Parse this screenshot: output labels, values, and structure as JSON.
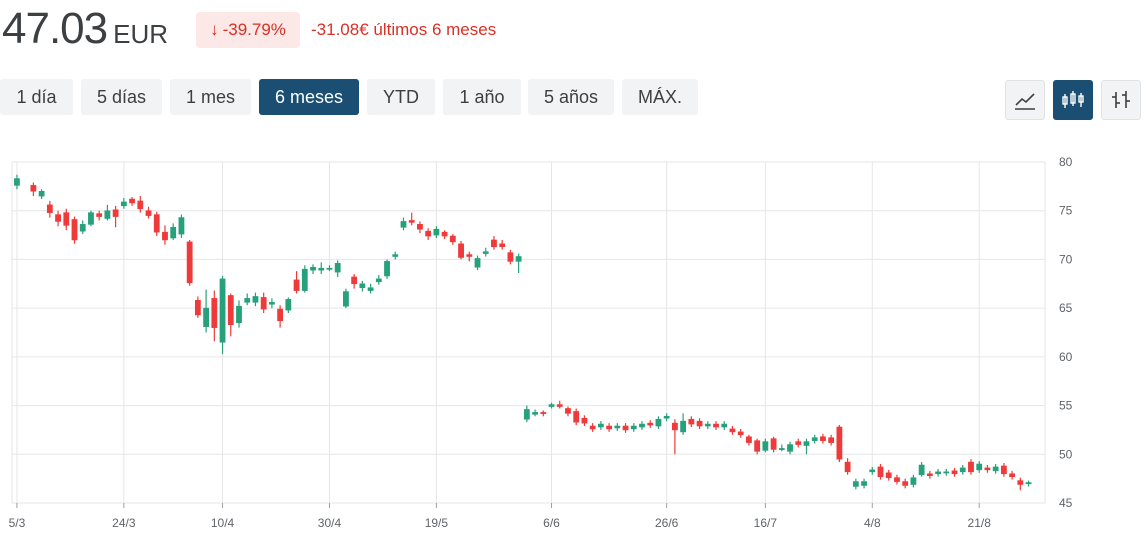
{
  "header": {
    "price": "47.03",
    "currency": "EUR",
    "change_pct": "-39.79%",
    "change_abs": "-31.08€ últimos 6 meses",
    "down_arrow": "↓"
  },
  "ranges": [
    {
      "label": "1 día",
      "active": false
    },
    {
      "label": "5 días",
      "active": false
    },
    {
      "label": "1 mes",
      "active": false
    },
    {
      "label": "6 meses",
      "active": true
    },
    {
      "label": "YTD",
      "active": false
    },
    {
      "label": "1 año",
      "active": false
    },
    {
      "label": "5 años",
      "active": false
    },
    {
      "label": "MÁX.",
      "active": false
    }
  ],
  "tools": [
    {
      "name": "line-chart-icon",
      "active": false
    },
    {
      "name": "candlestick-chart-icon",
      "active": true
    },
    {
      "name": "ohlc-chart-icon",
      "active": false
    }
  ],
  "colors": {
    "up": "#26a17b",
    "down": "#ee3a3a",
    "grid": "#e6e6e6",
    "active": "#1a4e72"
  },
  "chart_data": {
    "type": "candlestick",
    "ylim": [
      45,
      80
    ],
    "y_ticks": [
      "80",
      "75",
      "70",
      "65",
      "60",
      "55",
      "50",
      "45"
    ],
    "x_ticks": [
      "5/3",
      "24/3",
      "10/4",
      "30/4",
      "19/5",
      "6/6",
      "26/6",
      "16/7",
      "4/8",
      "21/8"
    ],
    "candles": [
      [
        2.0,
        "5/3",
        77.6,
        78.3,
        78.7,
        77.2
      ],
      [
        4.0,
        "",
        77.6,
        77.0,
        77.9,
        76.5
      ],
      [
        5.0,
        "",
        76.5,
        77.0,
        77.2,
        76.2
      ],
      [
        6.0,
        "",
        75.6,
        74.8,
        76.0,
        74.3
      ],
      [
        7.0,
        "",
        74.6,
        73.9,
        75.0,
        73.4
      ],
      [
        8.0,
        "",
        74.8,
        73.5,
        75.2,
        73.0
      ],
      [
        9.0,
        "",
        74.1,
        72.0,
        74.4,
        71.6
      ],
      [
        10.0,
        "",
        72.9,
        73.6,
        74.0,
        72.6
      ],
      [
        11.0,
        "",
        73.6,
        74.8,
        75.0,
        73.4
      ],
      [
        12.0,
        "",
        74.7,
        74.4,
        75.0,
        74.0
      ],
      [
        13.0,
        "",
        74.2,
        75.0,
        75.6,
        74.0
      ],
      [
        14.0,
        "",
        75.1,
        74.4,
        75.5,
        73.3
      ],
      [
        15.0,
        "24/3",
        75.5,
        75.9,
        76.3,
        75.2
      ],
      [
        16.0,
        "",
        76.2,
        75.8,
        76.4,
        75.5
      ],
      [
        17.0,
        "",
        76.0,
        75.2,
        76.5,
        74.8
      ],
      [
        18.0,
        "",
        75.0,
        74.5,
        75.4,
        74.2
      ],
      [
        19.0,
        "",
        74.6,
        72.8,
        74.9,
        72.4
      ],
      [
        20.0,
        "",
        72.8,
        72.0,
        73.5,
        71.5
      ],
      [
        21.0,
        "",
        72.2,
        73.3,
        73.7,
        72.0
      ],
      [
        22.0,
        "",
        72.6,
        74.3,
        74.6,
        72.2
      ],
      [
        23.0,
        "",
        71.8,
        67.6,
        72.0,
        67.3
      ],
      [
        24.0,
        "",
        65.8,
        64.3,
        66.2,
        64.0
      ],
      [
        25.0,
        "",
        63.1,
        65.0,
        66.9,
        62.5
      ],
      [
        26.0,
        "",
        66.0,
        63.0,
        66.8,
        61.6
      ],
      [
        27.0,
        "10/4",
        61.5,
        68.0,
        68.3,
        60.3
      ],
      [
        28.0,
        "",
        66.3,
        63.3,
        66.5,
        62.1
      ],
      [
        29.0,
        "",
        63.5,
        65.2,
        65.8,
        63.0
      ],
      [
        30.0,
        "",
        65.6,
        66.0,
        66.5,
        65.3
      ],
      [
        31.0,
        "",
        65.6,
        66.2,
        66.6,
        65.2
      ],
      [
        32.0,
        "",
        66.1,
        64.9,
        66.6,
        64.5
      ],
      [
        33.0,
        "",
        65.4,
        65.6,
        66.0,
        65.0
      ],
      [
        34.0,
        "",
        64.9,
        63.7,
        65.3,
        63.0
      ],
      [
        35.0,
        "",
        64.8,
        65.9,
        66.1,
        64.5
      ],
      [
        36.0,
        "",
        67.9,
        66.8,
        68.8,
        66.5
      ],
      [
        37.0,
        "",
        66.8,
        69.0,
        69.4,
        66.6
      ],
      [
        38.0,
        "",
        68.9,
        69.2,
        69.5,
        68.5
      ],
      [
        39.0,
        "",
        68.9,
        69.1,
        69.7,
        68.5
      ],
      [
        40.0,
        "30/4",
        69.1,
        69.1,
        69.4,
        68.8
      ],
      [
        41.0,
        "",
        68.7,
        69.6,
        69.9,
        68.2
      ],
      [
        42.0,
        "",
        65.2,
        66.7,
        67.0,
        65.0
      ],
      [
        43.0,
        "",
        68.2,
        67.5,
        68.5,
        67.0
      ],
      [
        44.0,
        "",
        67.1,
        67.5,
        67.8,
        66.7
      ],
      [
        45.0,
        "",
        66.8,
        67.1,
        67.5,
        66.5
      ],
      [
        46.0,
        "",
        67.7,
        68.0,
        68.4,
        67.4
      ],
      [
        47.0,
        "",
        68.3,
        69.8,
        70.0,
        68.0
      ],
      [
        48.0,
        "",
        70.3,
        70.5,
        70.8,
        70.0
      ],
      [
        49.0,
        "",
        73.3,
        73.9,
        74.3,
        73.0
      ],
      [
        50.0,
        "",
        74.0,
        73.8,
        74.8,
        73.5
      ],
      [
        51.0,
        "",
        73.6,
        73.1,
        73.9,
        72.7
      ],
      [
        52.0,
        "",
        72.9,
        72.4,
        73.2,
        72.0
      ],
      [
        53.0,
        "19/5",
        72.5,
        73.1,
        73.4,
        72.2
      ],
      [
        54.0,
        "",
        72.8,
        72.4,
        73.0,
        72.1
      ],
      [
        55.0,
        "",
        72.4,
        71.8,
        72.6,
        71.5
      ],
      [
        56.0,
        "",
        71.6,
        70.2,
        71.9,
        70.0
      ],
      [
        57.0,
        "",
        70.5,
        70.3,
        70.8,
        69.8
      ],
      [
        58.0,
        "",
        69.2,
        70.1,
        70.4,
        68.9
      ],
      [
        59.0,
        "",
        70.6,
        70.8,
        71.2,
        70.3
      ],
      [
        60.0,
        "",
        72.0,
        71.3,
        72.4,
        71.0
      ],
      [
        61.0,
        "",
        71.6,
        71.3,
        72.0,
        71.0
      ],
      [
        62.0,
        "",
        70.7,
        69.8,
        71.0,
        69.5
      ],
      [
        63.0,
        "",
        69.8,
        70.3,
        70.6,
        68.6
      ],
      [
        64.0,
        "",
        53.6,
        54.6,
        55.0,
        53.3
      ],
      [
        65.0,
        "",
        54.1,
        54.3,
        54.6,
        53.9
      ],
      [
        66.0,
        "",
        54.3,
        54.2,
        54.5,
        53.9
      ],
      [
        67.0,
        "6/6",
        54.9,
        55.1,
        55.3,
        54.7
      ],
      [
        68.0,
        "",
        55.1,
        54.9,
        55.5,
        54.7
      ],
      [
        69.0,
        "",
        54.7,
        54.2,
        54.9,
        53.9
      ],
      [
        70.0,
        "",
        54.4,
        53.3,
        54.7,
        53.0
      ],
      [
        71.0,
        "",
        53.7,
        53.2,
        54.0,
        52.9
      ],
      [
        72.0,
        "",
        52.9,
        52.6,
        53.2,
        52.3
      ],
      [
        73.0,
        "",
        52.8,
        53.1,
        53.4,
        52.5
      ],
      [
        74.0,
        "",
        52.9,
        52.6,
        53.2,
        52.3
      ],
      [
        75.0,
        "",
        52.7,
        52.9,
        53.2,
        52.4
      ],
      [
        76.0,
        "",
        52.9,
        52.5,
        53.2,
        52.2
      ],
      [
        77.0,
        "",
        52.6,
        52.9,
        53.2,
        52.3
      ],
      [
        78.0,
        "",
        52.8,
        53.1,
        53.4,
        52.5
      ],
      [
        79.0,
        "",
        53.2,
        53.0,
        53.5,
        52.7
      ],
      [
        80.0,
        "",
        52.9,
        53.6,
        53.9,
        52.6
      ],
      [
        81.0,
        "26/6",
        53.7,
        53.9,
        54.2,
        53.4
      ],
      [
        82.0,
        "",
        53.2,
        52.5,
        53.6,
        50.0
      ],
      [
        83.0,
        "",
        52.3,
        53.4,
        54.2,
        52.0
      ],
      [
        84.0,
        "",
        53.6,
        53.1,
        53.9,
        52.8
      ],
      [
        85.0,
        "",
        53.4,
        52.9,
        53.7,
        52.6
      ],
      [
        86.0,
        "",
        52.9,
        53.1,
        53.4,
        52.6
      ],
      [
        87.0,
        "",
        53.1,
        52.8,
        53.4,
        52.5
      ],
      [
        88.0,
        "",
        52.8,
        53.1,
        53.4,
        52.5
      ],
      [
        89.0,
        "",
        52.6,
        52.3,
        52.9,
        52.0
      ],
      [
        90.0,
        "",
        52.3,
        52.0,
        52.6,
        51.7
      ],
      [
        91.0,
        "",
        51.8,
        51.2,
        52.0,
        50.9
      ],
      [
        92.0,
        "",
        51.4,
        50.3,
        51.6,
        50.0
      ],
      [
        93.0,
        "16/7",
        50.4,
        51.3,
        51.6,
        50.2
      ],
      [
        94.0,
        "",
        51.6,
        50.5,
        51.8,
        50.2
      ],
      [
        95.0,
        "",
        50.6,
        50.6,
        51.0,
        50.3
      ],
      [
        96.0,
        "",
        50.3,
        51.0,
        51.3,
        50.0
      ],
      [
        97.0,
        "",
        51.3,
        51.0,
        51.6,
        50.7
      ],
      [
        98.0,
        "",
        50.9,
        51.3,
        51.6,
        50.0
      ],
      [
        99.0,
        "",
        51.4,
        51.7,
        52.0,
        51.1
      ],
      [
        100.0,
        "",
        51.8,
        51.4,
        52.1,
        51.1
      ],
      [
        101.0,
        "",
        51.7,
        51.2,
        52.0,
        50.9
      ],
      [
        102.0,
        "",
        52.8,
        49.5,
        53.0,
        49.2
      ],
      [
        103.0,
        "",
        49.2,
        48.2,
        49.6,
        47.9
      ],
      [
        104.0,
        "",
        46.7,
        47.2,
        47.5,
        46.4
      ],
      [
        105.0,
        "",
        46.8,
        47.2,
        47.5,
        46.5
      ],
      [
        106.0,
        "4/8",
        48.2,
        48.4,
        48.7,
        47.9
      ],
      [
        107.0,
        "",
        48.7,
        47.7,
        49.0,
        47.4
      ],
      [
        108.0,
        "",
        48.1,
        47.6,
        48.4,
        47.3
      ],
      [
        109.0,
        "",
        47.6,
        47.2,
        47.9,
        46.9
      ],
      [
        110.0,
        "",
        47.2,
        46.8,
        47.5,
        46.5
      ],
      [
        111.0,
        "",
        46.9,
        47.6,
        47.9,
        46.6
      ],
      [
        112.0,
        "",
        47.9,
        48.9,
        49.2,
        47.7
      ],
      [
        113.0,
        "",
        48.0,
        47.8,
        48.3,
        47.5
      ],
      [
        114.0,
        "",
        48.0,
        48.2,
        48.5,
        47.7
      ],
      [
        115.0,
        "",
        48.1,
        48.2,
        48.5,
        47.8
      ],
      [
        116.0,
        "",
        48.3,
        48.0,
        48.6,
        47.7
      ],
      [
        117.0,
        "",
        48.2,
        48.6,
        48.9,
        47.9
      ],
      [
        118.0,
        "",
        49.2,
        48.2,
        49.5,
        47.9
      ],
      [
        119.0,
        "21/8",
        48.4,
        49.0,
        49.3,
        48.1
      ],
      [
        120.0,
        "",
        48.6,
        48.4,
        48.9,
        48.1
      ],
      [
        121.0,
        "",
        48.3,
        48.7,
        49.0,
        48.0
      ],
      [
        122.0,
        "",
        48.8,
        48.0,
        49.1,
        47.7
      ],
      [
        123.0,
        "",
        48.0,
        47.7,
        48.3,
        47.4
      ],
      [
        124.0,
        "",
        47.3,
        46.9,
        47.6,
        46.3
      ],
      [
        125.0,
        "",
        47.0,
        47.1,
        47.3,
        46.7
      ]
    ]
  }
}
